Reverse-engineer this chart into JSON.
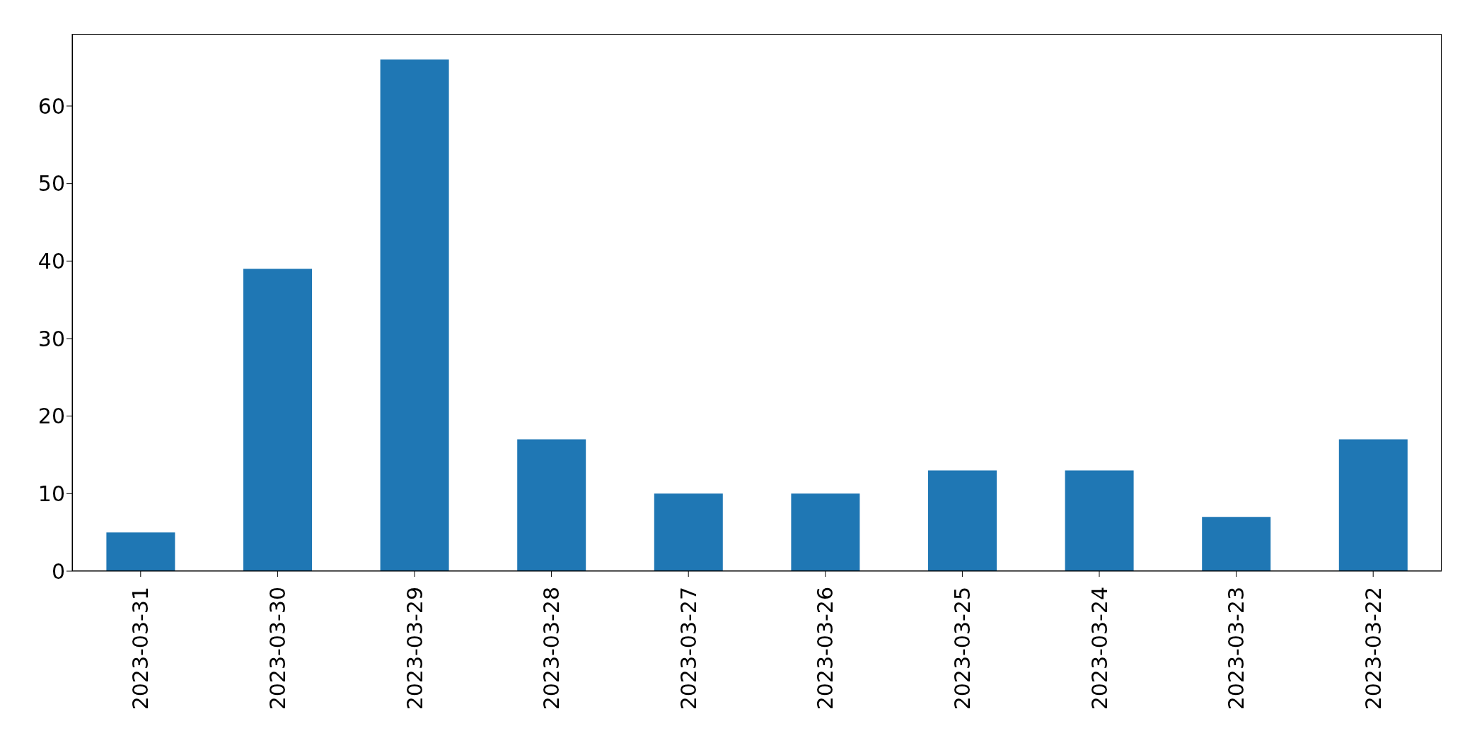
{
  "chart_data": {
    "type": "bar",
    "categories": [
      "2023-03-31",
      "2023-03-30",
      "2023-03-29",
      "2023-03-28",
      "2023-03-27",
      "2023-03-26",
      "2023-03-25",
      "2023-03-24",
      "2023-03-23",
      "2023-03-22"
    ],
    "values": [
      5,
      39,
      66,
      17,
      10,
      10,
      13,
      13,
      7,
      17
    ],
    "color": "#1f77b4",
    "ylim": [
      0,
      69.3
    ],
    "yticks": [
      0,
      10,
      20,
      30,
      40,
      50,
      60
    ],
    "grid": false,
    "legend": false
  }
}
